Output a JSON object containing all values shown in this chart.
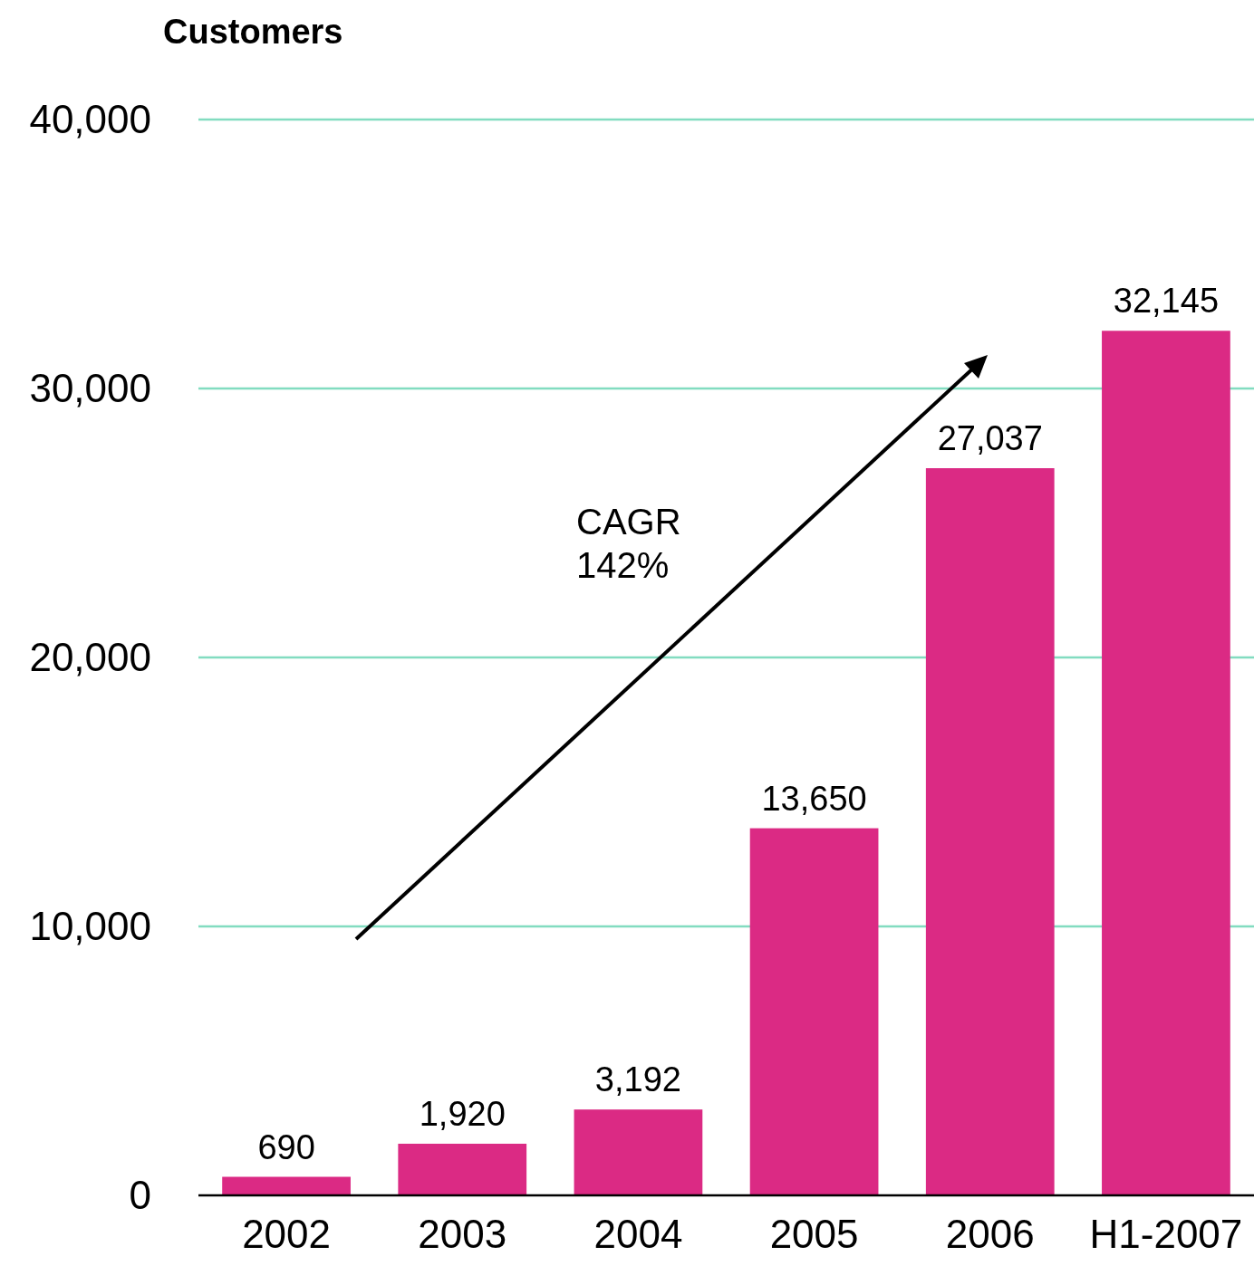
{
  "chart_data": {
    "type": "bar",
    "title": "Customers",
    "categories": [
      "2002",
      "2003",
      "2004",
      "2005",
      "2006",
      "H1-2007"
    ],
    "values": [
      690,
      1920,
      3192,
      13650,
      27037,
      32145
    ],
    "value_labels": [
      "690",
      "1,920",
      "3,192",
      "13,650",
      "27,037",
      "32,145"
    ],
    "color": "#db2a84",
    "ylim": [
      0,
      40000
    ],
    "yticks": [
      0,
      {
        "value": 10000,
        "label": "10,000"
      },
      {
        "value": 20000,
        "label": "20,000"
      },
      {
        "value": 30000,
        "label": "30,000"
      },
      {
        "value": 40000,
        "label": "40,000"
      }
    ],
    "grid": "y",
    "annotations": [
      "CAGR\n142%"
    ]
  }
}
